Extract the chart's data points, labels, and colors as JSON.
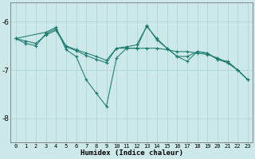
{
  "title": "",
  "xlabel": "Humidex (Indice chaleur)",
  "ylabel": "",
  "bg_color": "#cce8e8",
  "grid_color": "#b0d4d4",
  "line_color": "#1a7a6e",
  "x_ticks": [
    0,
    1,
    2,
    3,
    4,
    5,
    6,
    7,
    8,
    9,
    10,
    11,
    12,
    13,
    14,
    15,
    16,
    17,
    18,
    19,
    20,
    21,
    22,
    23
  ],
  "y_ticks": [
    -6,
    -7,
    -8
  ],
  "ylim": [
    -8.5,
    -5.6
  ],
  "xlim": [
    -0.5,
    23.5
  ],
  "series1_x": [
    0,
    1,
    2,
    3,
    4,
    5,
    6,
    7,
    8,
    9,
    10,
    11,
    12,
    13,
    14,
    15,
    16,
    17,
    18,
    19,
    20,
    21,
    22,
    23
  ],
  "series1_y": [
    -6.35,
    -6.45,
    -6.5,
    -6.25,
    -6.15,
    -6.5,
    -6.58,
    -6.65,
    -6.72,
    -6.8,
    -6.55,
    -6.55,
    -6.55,
    -6.55,
    -6.55,
    -6.58,
    -6.62,
    -6.62,
    -6.65,
    -6.68,
    -6.75,
    -6.85,
    -7.0,
    -7.2
  ],
  "series2_x": [
    0,
    1,
    2,
    3,
    4,
    5,
    6,
    7,
    8,
    9,
    10,
    11,
    12,
    13,
    14,
    15,
    16,
    17,
    18,
    19,
    20,
    21,
    22,
    23
  ],
  "series2_y": [
    -6.35,
    -6.4,
    -6.45,
    -6.28,
    -6.18,
    -6.52,
    -6.6,
    -6.7,
    -6.78,
    -6.85,
    -6.55,
    -6.52,
    -6.48,
    -6.1,
    -6.35,
    -6.55,
    -6.72,
    -6.72,
    -6.62,
    -6.65,
    -6.78,
    -6.85,
    -7.0,
    -7.2
  ],
  "series3_x": [
    0,
    3,
    4,
    5,
    6,
    7,
    8,
    9,
    10,
    11,
    12,
    13,
    14,
    15,
    16,
    17,
    18,
    19,
    20,
    21,
    22,
    23
  ],
  "series3_y": [
    -6.35,
    -6.22,
    -6.12,
    -6.58,
    -6.72,
    -7.2,
    -7.48,
    -7.75,
    -6.75,
    -6.55,
    -6.55,
    -6.08,
    -6.38,
    -6.55,
    -6.72,
    -6.82,
    -6.62,
    -6.65,
    -6.78,
    -6.82,
    -7.0,
    -7.2
  ]
}
